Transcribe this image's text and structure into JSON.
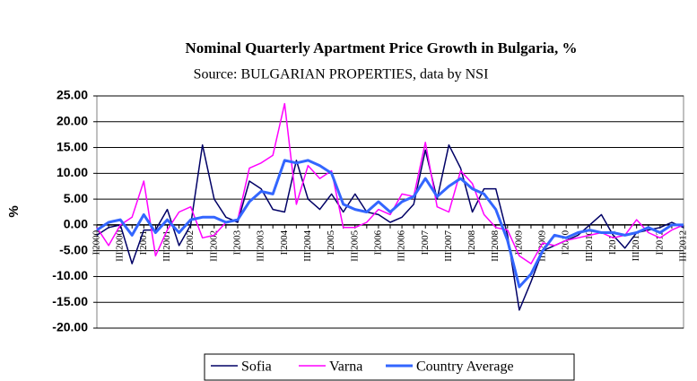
{
  "chart_data": {
    "type": "line",
    "title": "Nominal Quarterly Apartment Price Growth in Bulgaria, %",
    "subtitle": "Source: BULGARIAN PROPERTIES, data by NSI",
    "y_label": "%",
    "categories": [
      "I'2000",
      null,
      "III'2000",
      null,
      "I'2001",
      null,
      "III'2001",
      null,
      "I'2002",
      null,
      "III'2002",
      null,
      "I'2003",
      null,
      "III'2003",
      null,
      "I'2004",
      null,
      "III'2004",
      null,
      "I'2005",
      null,
      "III'2005",
      null,
      "I'2006",
      null,
      "III'2006",
      null,
      "I'2007",
      null,
      "III'2007",
      null,
      "I'2008",
      null,
      "III'2008",
      null,
      "I'2009",
      null,
      "III'2009",
      null,
      "I'2010",
      null,
      "III'2010",
      null,
      "I'2011",
      null,
      "III'2011",
      null,
      "I'2012",
      null,
      "III'2012"
    ],
    "series": [
      {
        "name": "Sofia",
        "color": "#000066",
        "values": [
          -2,
          -0.5,
          0,
          -7.5,
          -1,
          -1,
          3,
          -4,
          0,
          15.5,
          5,
          1.5,
          0.5,
          8.5,
          7,
          3,
          2.5,
          12.5,
          5,
          3,
          6,
          2.5,
          6,
          2.5,
          2,
          0.5,
          1.5,
          4,
          14.5,
          5,
          15.5,
          11,
          2.5,
          7,
          7,
          -2,
          -16.5,
          -11,
          -5,
          -4,
          -3,
          -2,
          0,
          2,
          -2,
          -4.5,
          -1.5,
          -1,
          -0.5,
          0.5,
          -0.5
        ]
      },
      {
        "name": "Varna",
        "color": "#ff00ff",
        "values": [
          -0.5,
          -4,
          0,
          1.5,
          8.5,
          -6,
          -1,
          2.5,
          3.5,
          -2.5,
          -2,
          0.5,
          1,
          11,
          12,
          13.5,
          23.5,
          4,
          11.5,
          9,
          10.5,
          -0.5,
          -0.5,
          0.5,
          3,
          2,
          6,
          5.5,
          16,
          3.5,
          2.5,
          10.5,
          8,
          2,
          -0.5,
          -1,
          -6,
          -7.5,
          -3.5,
          -4,
          -3,
          -2.5,
          -2,
          -1.5,
          -2.5,
          -2,
          1,
          -1.5,
          -2.5,
          -1,
          0
        ]
      },
      {
        "name": "Country Average",
        "color": "#3366ff",
        "values": [
          -1,
          0.5,
          1,
          -2,
          2,
          -1.5,
          1,
          -1.5,
          1,
          1.5,
          1.5,
          0.5,
          1,
          4.5,
          6.5,
          6,
          12.5,
          12,
          12.5,
          11.5,
          10,
          4,
          3,
          2.5,
          4.5,
          2.5,
          4.5,
          5.5,
          9,
          5.5,
          7.5,
          9,
          7,
          6,
          3,
          -3,
          -12,
          -9.5,
          -5,
          -2,
          -2.5,
          -1.5,
          -1,
          -1.5,
          -1.5,
          -2,
          -1.5,
          -0.5,
          -1.5,
          0,
          0
        ]
      }
    ],
    "ylim": [
      -20,
      25
    ],
    "yticks": [
      {
        "value": -20,
        "label": "-20.00"
      },
      {
        "value": -15,
        "label": "-15.00"
      },
      {
        "value": -10,
        "label": "-10.00"
      },
      {
        "value": -5,
        "label": "-5.00"
      },
      {
        "value": 0,
        "label": "0.00"
      },
      {
        "value": 5,
        "label": "5.00"
      },
      {
        "value": 10,
        "label": "10.00"
      },
      {
        "value": 15,
        "label": "15.00"
      },
      {
        "value": 20,
        "label": "20.00"
      },
      {
        "value": 25,
        "label": "25.00"
      }
    ],
    "grid": true,
    "legend": "bottom"
  }
}
